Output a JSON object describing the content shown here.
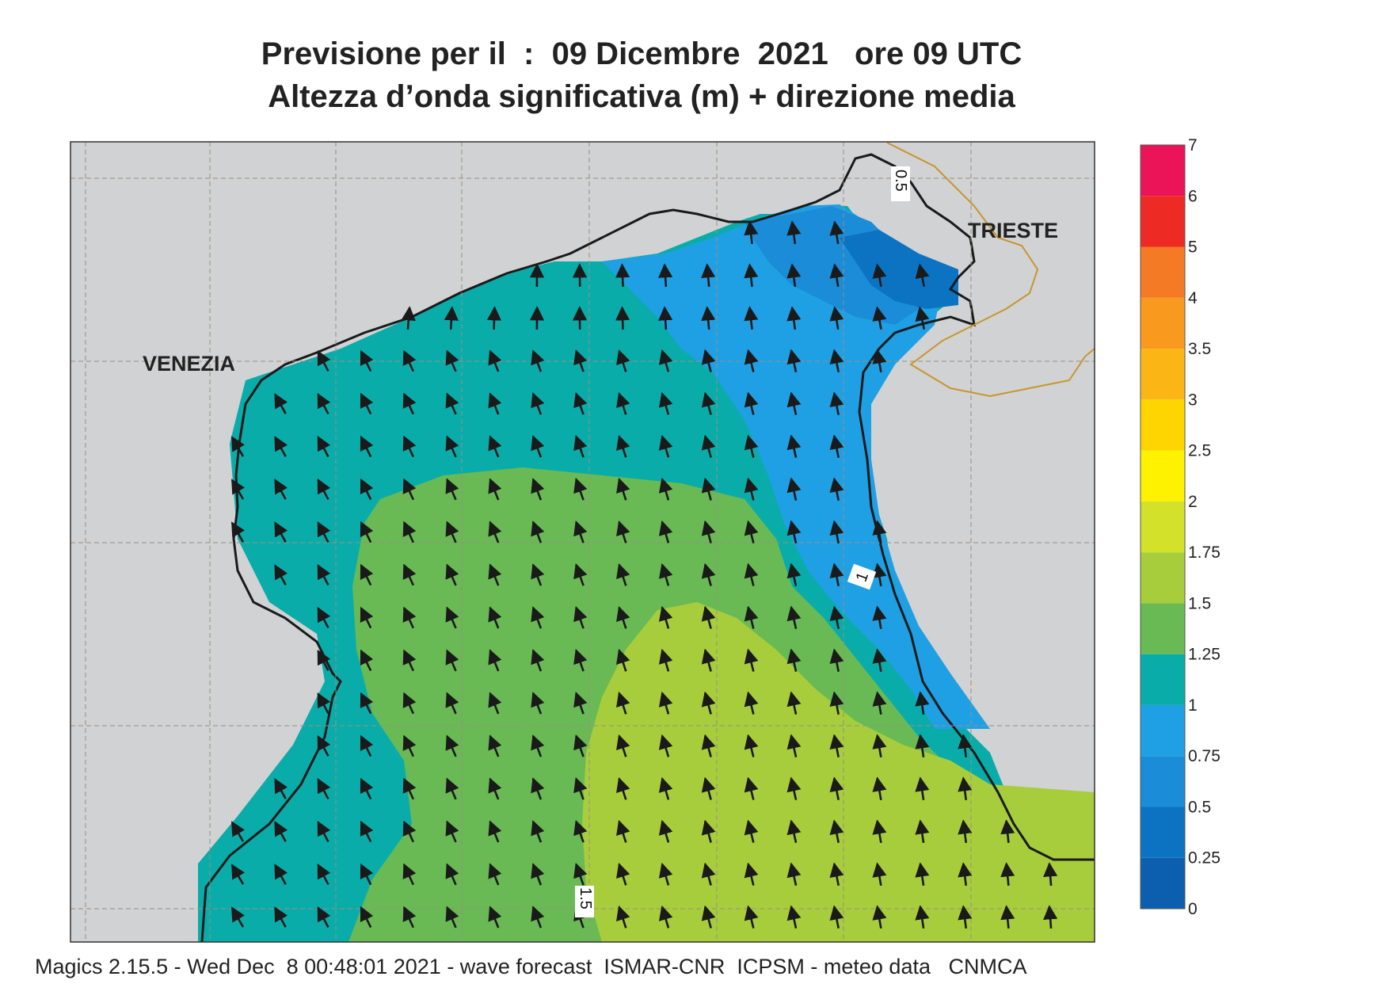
{
  "title": {
    "line1": "Previsione per il  :  09 Dicembre  2021   ore 09 UTC",
    "line2": "Altezza d’onda significativa (m) + direzione media"
  },
  "map": {
    "cities": [
      "VENEZIA",
      "TRIESTE"
    ],
    "contour_labels": [
      "0.5",
      "1",
      "1.5"
    ]
  },
  "colorbar": {
    "levels": [
      {
        "label": "0",
        "color": "#0b5fae"
      },
      {
        "label": "0.25",
        "color": "#0b73c2"
      },
      {
        "label": "0.5",
        "color": "#1a8cd8"
      },
      {
        "label": "0.75",
        "color": "#1fa0e4"
      },
      {
        "label": "1",
        "color": "#0aacaa"
      },
      {
        "label": "1.25",
        "color": "#69ba54"
      },
      {
        "label": "1.5",
        "color": "#a7cd3c"
      },
      {
        "label": "1.75",
        "color": "#d4e12a"
      },
      {
        "label": "2",
        "color": "#fff200"
      },
      {
        "label": "2.5",
        "color": "#ffd500"
      },
      {
        "label": "3",
        "color": "#fbb616"
      },
      {
        "label": "3.5",
        "color": "#f99a1f"
      },
      {
        "label": "4",
        "color": "#f47a25"
      },
      {
        "label": "5",
        "color": "#ee2a24"
      },
      {
        "label": "6",
        "color": "#ec1459"
      },
      {
        "label": "7",
        "color": ""
      }
    ]
  },
  "footer": "Magics 2.15.5 - Wed Dec  8 00:48:01 2021 - wave forecast  ISMAR-CNR  ICPSM - meteo data   CNMCA"
}
